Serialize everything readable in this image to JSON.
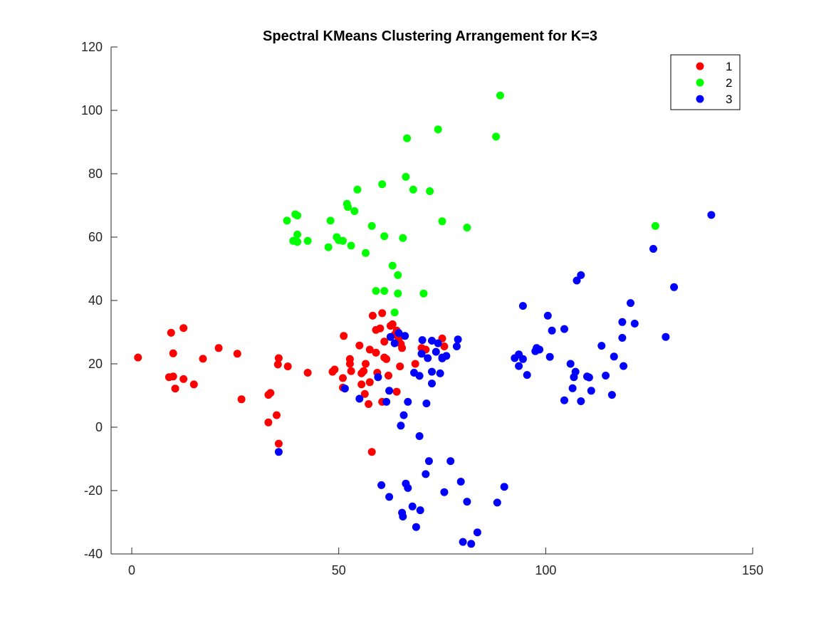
{
  "chart_data": {
    "type": "scatter",
    "title": "Spectral KMeans Clustering Arrangement for K=3",
    "xlabel": "",
    "ylabel": "",
    "xlim": [
      -5,
      150
    ],
    "ylim": [
      -40,
      120
    ],
    "x_ticks": [
      "0",
      "50",
      "100",
      "150"
    ],
    "y_ticks": [
      "-40",
      "-20",
      "0",
      "20",
      "40",
      "60",
      "80",
      "100",
      "120"
    ],
    "grid": false,
    "legend_position": "top-right",
    "series": [
      {
        "name": "1",
        "color": "#ff0000",
        "points": [
          [
            1.5,
            22
          ],
          [
            9.5,
            29.8
          ],
          [
            10,
            23.3
          ],
          [
            9,
            15.8
          ],
          [
            10,
            16
          ],
          [
            10.5,
            12.2
          ],
          [
            12.5,
            31.3
          ],
          [
            12.5,
            15.2
          ],
          [
            15,
            13.5
          ],
          [
            17.2,
            21.6
          ],
          [
            21,
            25
          ],
          [
            25.5,
            23.2
          ],
          [
            26.5,
            8.8
          ],
          [
            33,
            10.2
          ],
          [
            33.5,
            10.8
          ],
          [
            35,
            3.8
          ],
          [
            35.3,
            19.8
          ],
          [
            35.5,
            21.8
          ],
          [
            35.5,
            -5.2
          ],
          [
            33,
            1.5
          ],
          [
            37.7,
            19.2
          ],
          [
            42.5,
            17.2
          ],
          [
            48.5,
            17.5
          ],
          [
            49,
            18.2
          ],
          [
            51.2,
            28.8
          ],
          [
            51,
            15.5
          ],
          [
            51,
            12.5
          ],
          [
            52.7,
            21.5
          ],
          [
            52.7,
            20
          ],
          [
            53,
            17.7
          ],
          [
            55,
            25.8
          ],
          [
            55.5,
            17
          ],
          [
            56,
            17.7
          ],
          [
            55.5,
            13.5
          ],
          [
            56.5,
            20
          ],
          [
            56.3,
            10.5
          ],
          [
            57.2,
            7.3
          ],
          [
            57.5,
            24.5
          ],
          [
            57.5,
            14.2
          ],
          [
            58,
            -7.8
          ],
          [
            58.2,
            35.2
          ],
          [
            59,
            23.5
          ],
          [
            59.3,
            17.2
          ],
          [
            59,
            30.7
          ],
          [
            60,
            31.2
          ],
          [
            60.5,
            36
          ],
          [
            60.5,
            8
          ],
          [
            61,
            27
          ],
          [
            61,
            22
          ],
          [
            61.5,
            21.5
          ],
          [
            62,
            16.3
          ],
          [
            62.5,
            32
          ],
          [
            63,
            32.5
          ],
          [
            63.5,
            29.2
          ],
          [
            64,
            11.2
          ],
          [
            64,
            30.5
          ],
          [
            64.5,
            28
          ],
          [
            65,
            26.3
          ],
          [
            65.3,
            25
          ],
          [
            64.8,
            19.2
          ],
          [
            68.5,
            20
          ],
          [
            70,
            25
          ],
          [
            71,
            24.5
          ],
          [
            75,
            28
          ],
          [
            75.5,
            25.5
          ]
        ]
      },
      {
        "name": "2",
        "color": "#00ff00",
        "points": [
          [
            37.5,
            65.2
          ],
          [
            39,
            58.8
          ],
          [
            39.5,
            67.2
          ],
          [
            40,
            66.8
          ],
          [
            40,
            58.5
          ],
          [
            40,
            60.8
          ],
          [
            42.5,
            58.8
          ],
          [
            47.5,
            56.8
          ],
          [
            48,
            65.2
          ],
          [
            49.5,
            60
          ],
          [
            50,
            59
          ],
          [
            51,
            58.8
          ],
          [
            52,
            70.5
          ],
          [
            52.2,
            69.5
          ],
          [
            53,
            57.3
          ],
          [
            53.8,
            68.2
          ],
          [
            54.5,
            75
          ],
          [
            56.5,
            55
          ],
          [
            58,
            63.5
          ],
          [
            59,
            43
          ],
          [
            60.5,
            76.7
          ],
          [
            61,
            60.3
          ],
          [
            61,
            43
          ],
          [
            63,
            51
          ],
          [
            63.5,
            36.2
          ],
          [
            64.3,
            48
          ],
          [
            64.3,
            42.2
          ],
          [
            65.5,
            59.7
          ],
          [
            66.2,
            79
          ],
          [
            66.5,
            91.2
          ],
          [
            68,
            75
          ],
          [
            70.5,
            42.2
          ],
          [
            72,
            74.5
          ],
          [
            74,
            94
          ],
          [
            75,
            65
          ],
          [
            81,
            63
          ],
          [
            88,
            91.7
          ],
          [
            89,
            104.7
          ],
          [
            126.5,
            63.5
          ]
        ]
      },
      {
        "name": "3",
        "color": "#0000ff",
        "points": [
          [
            35.5,
            -7.8
          ],
          [
            51.5,
            12.2
          ],
          [
            55,
            9
          ],
          [
            59.5,
            15.8
          ],
          [
            60.3,
            -18.3
          ],
          [
            61.5,
            8
          ],
          [
            62.2,
            -22
          ],
          [
            62.2,
            11.5
          ],
          [
            62.5,
            28.5
          ],
          [
            63.5,
            26.5
          ],
          [
            64.5,
            29.7
          ],
          [
            65,
            0.5
          ],
          [
            65.3,
            -27
          ],
          [
            65.5,
            -28.2
          ],
          [
            65.7,
            3.8
          ],
          [
            66,
            28.8
          ],
          [
            66.2,
            -17.8
          ],
          [
            66.7,
            -19.2
          ],
          [
            66.7,
            8
          ],
          [
            67.8,
            -25
          ],
          [
            68.2,
            17.2
          ],
          [
            68.7,
            -31.5
          ],
          [
            69.5,
            16.2
          ],
          [
            69.5,
            -2.8
          ],
          [
            69.7,
            -26.2
          ],
          [
            70,
            23.2
          ],
          [
            70.2,
            27.5
          ],
          [
            71,
            -14.8
          ],
          [
            71.2,
            7.5
          ],
          [
            71.5,
            21.8
          ],
          [
            71.8,
            -10.7
          ],
          [
            72.5,
            27.3
          ],
          [
            72.5,
            17.5
          ],
          [
            72.5,
            13.8
          ],
          [
            73.5,
            23.8
          ],
          [
            74,
            26.5
          ],
          [
            74.5,
            17
          ],
          [
            75,
            22
          ],
          [
            75,
            21.7
          ],
          [
            75.5,
            -20.5
          ],
          [
            76,
            22.5
          ],
          [
            77,
            -10.7
          ],
          [
            78.5,
            25.5
          ],
          [
            78.8,
            27.7
          ],
          [
            79.5,
            -17.2
          ],
          [
            80,
            -36.2
          ],
          [
            81,
            -23.5
          ],
          [
            82,
            -36.8
          ],
          [
            83.5,
            -33.2
          ],
          [
            88.3,
            -23.8
          ],
          [
            90,
            -18.8
          ],
          [
            92.5,
            21.8
          ],
          [
            93.5,
            19.3
          ],
          [
            93.5,
            23
          ],
          [
            94.5,
            21.5
          ],
          [
            94.5,
            38.3
          ],
          [
            95.5,
            16.5
          ],
          [
            97.5,
            24
          ],
          [
            97.8,
            25
          ],
          [
            98.5,
            24.5
          ],
          [
            100.5,
            35.2
          ],
          [
            101,
            22.2
          ],
          [
            101.5,
            30.5
          ],
          [
            104.5,
            8.5
          ],
          [
            104.5,
            31
          ],
          [
            106,
            20
          ],
          [
            106.5,
            12.3
          ],
          [
            106.8,
            15.8
          ],
          [
            107.2,
            17.5
          ],
          [
            107.5,
            46.3
          ],
          [
            108.5,
            48
          ],
          [
            108.5,
            8.2
          ],
          [
            110,
            16
          ],
          [
            110.5,
            15.7
          ],
          [
            111,
            11.5
          ],
          [
            113.5,
            25.7
          ],
          [
            114.5,
            16.3
          ],
          [
            116,
            10.2
          ],
          [
            116.5,
            22.3
          ],
          [
            118.5,
            28.2
          ],
          [
            118.5,
            33.2
          ],
          [
            118.8,
            19.3
          ],
          [
            120.5,
            39.2
          ],
          [
            121.5,
            32.7
          ],
          [
            126,
            56.3
          ],
          [
            129,
            28.5
          ],
          [
            131,
            44.2
          ],
          [
            140,
            67
          ]
        ]
      }
    ]
  }
}
